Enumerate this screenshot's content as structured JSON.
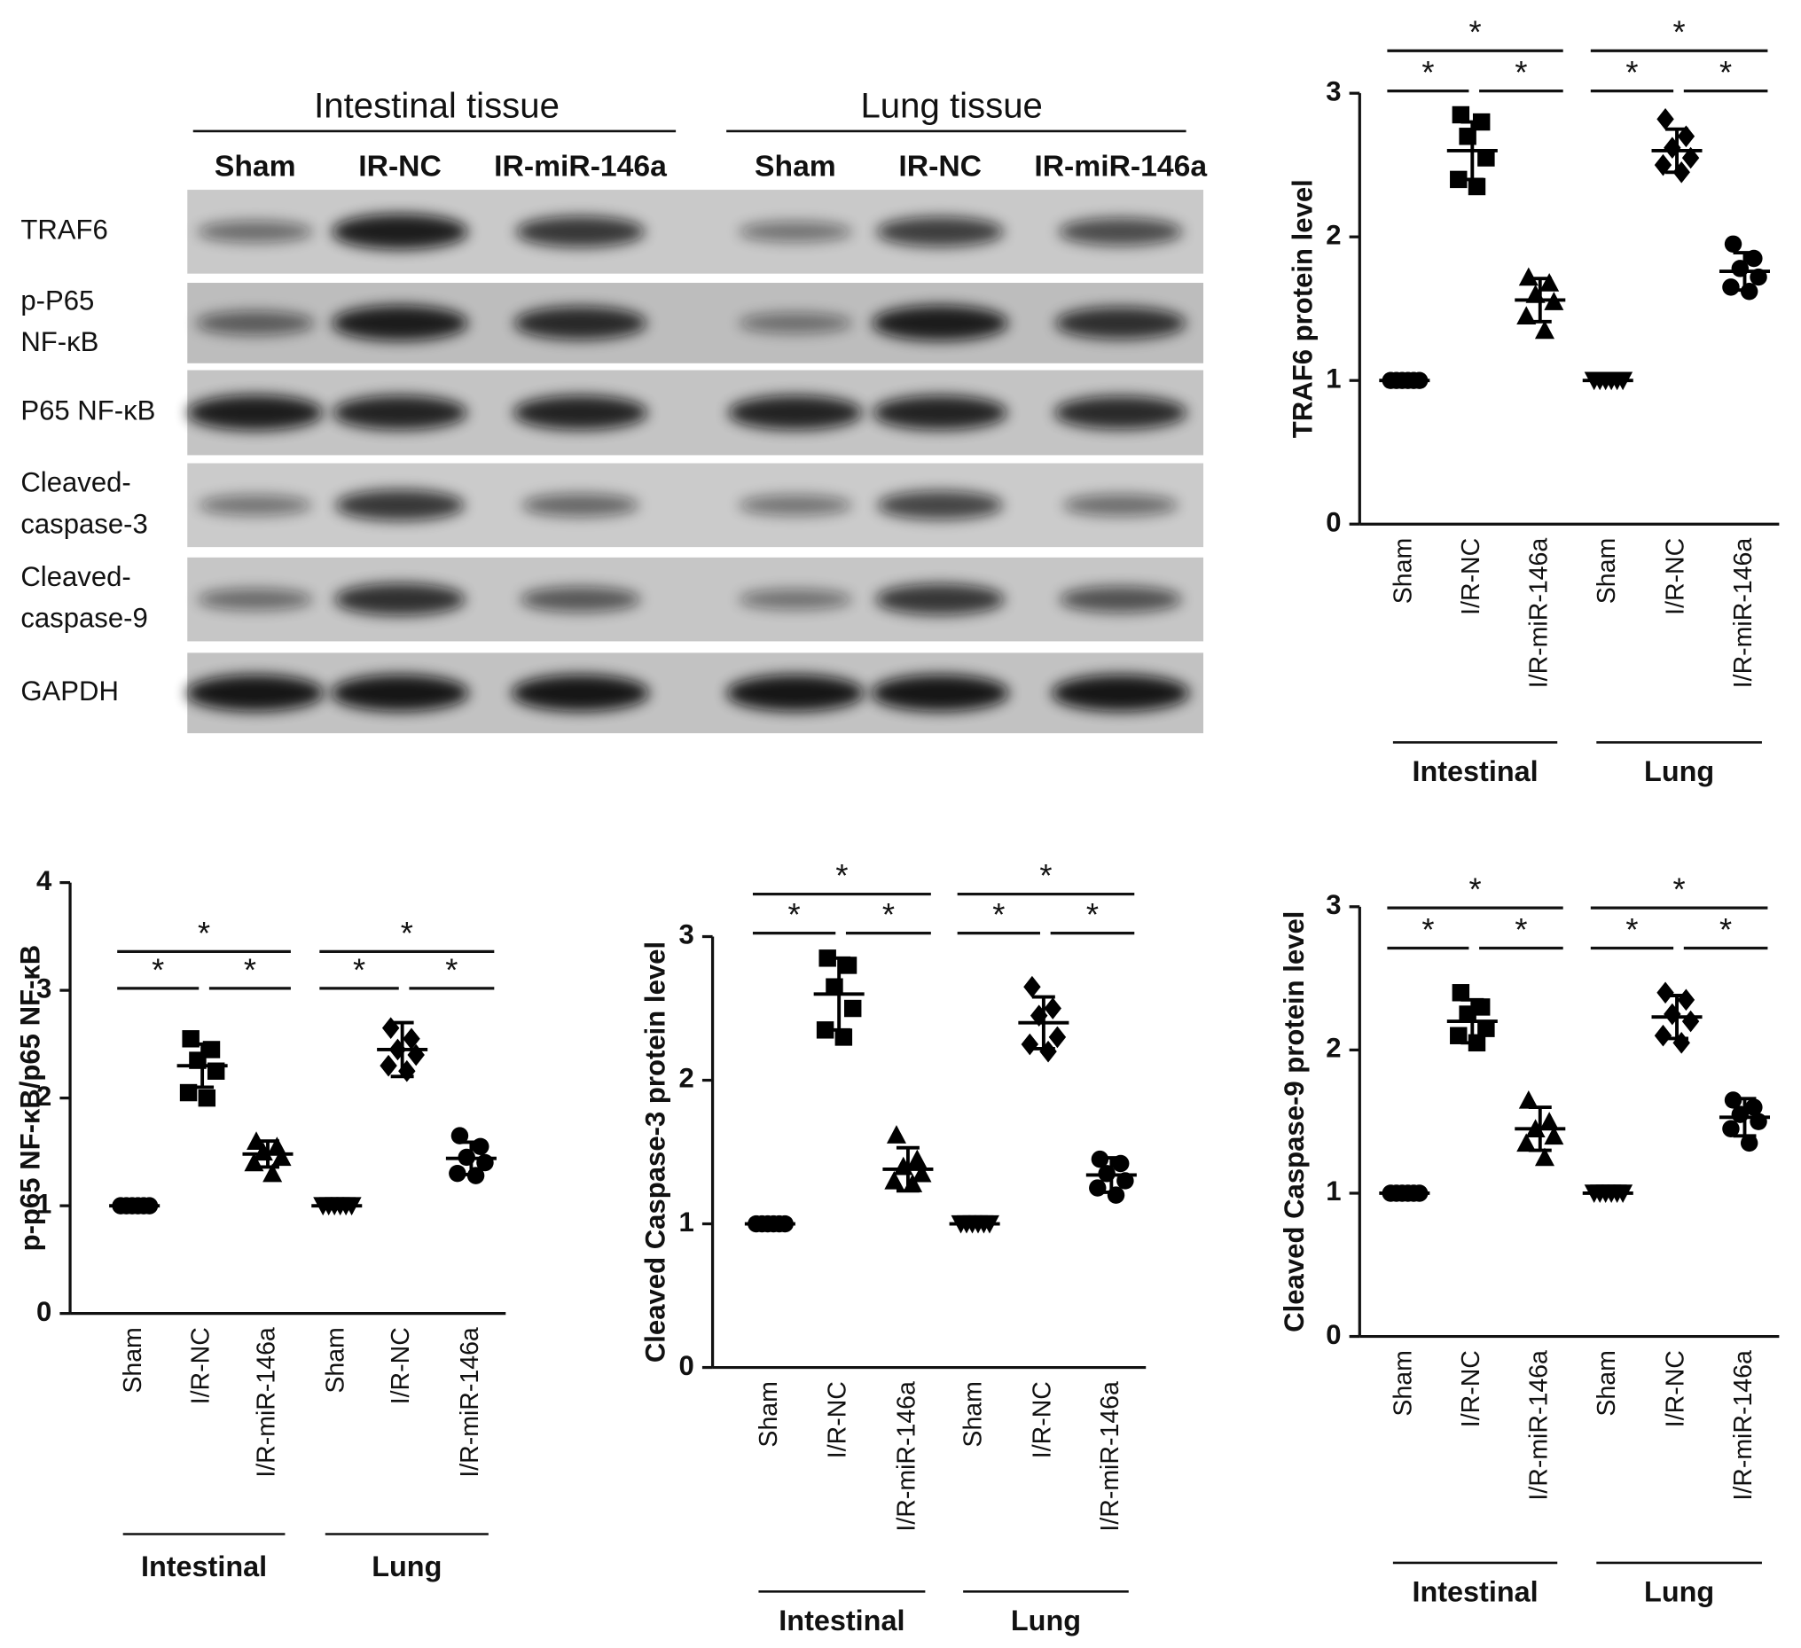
{
  "blot": {
    "tissues": [
      {
        "name": "Intestinal tissue",
        "lanes": [
          "Sham",
          "IR-NC",
          "IR-miR-146a"
        ]
      },
      {
        "name": "Lung tissue",
        "lanes": [
          "Sham",
          "IR-NC",
          "IR-miR-146a"
        ]
      }
    ],
    "rows": [
      [
        "TRAF6"
      ],
      [
        "p-P65",
        "NF-κB"
      ],
      [
        "P65 NF-κB"
      ],
      [
        "Cleaved-",
        "caspase-3"
      ],
      [
        "Cleaved-",
        "caspase-9"
      ],
      [
        "GAPDH"
      ]
    ]
  },
  "chart_data": [
    {
      "type": "scatter",
      "ylabel": "TRAF6 protein level",
      "color": "#000000",
      "ylim": [
        0,
        3
      ],
      "yticks": [
        0,
        1,
        2,
        3
      ],
      "groups": [
        {
          "name": "Intestinal",
          "categories": [
            "Sham",
            "I/R-NC",
            "I/R-miR-146a"
          ],
          "markers": [
            "circle",
            "square",
            "triangle"
          ],
          "points": [
            [
              1,
              1,
              1,
              1,
              1,
              1
            ],
            [
              2.85,
              2.8,
              2.7,
              2.55,
              2.4,
              2.35
            ],
            [
              1.72,
              1.68,
              1.6,
              1.55,
              1.45,
              1.35
            ]
          ],
          "mean": [
            1,
            2.6,
            1.56
          ],
          "sd": [
            0,
            0.2,
            0.15
          ]
        },
        {
          "name": "Lung",
          "categories": [
            "Sham",
            "I/R-NC",
            "I/R-miR-146a"
          ],
          "markers": [
            "triangle-down",
            "diamond",
            "circle"
          ],
          "points": [
            [
              1,
              1,
              1,
              1,
              1,
              1
            ],
            [
              2.82,
              2.7,
              2.62,
              2.55,
              2.5,
              2.45
            ],
            [
              1.95,
              1.85,
              1.78,
              1.72,
              1.65,
              1.62
            ]
          ],
          "mean": [
            1,
            2.6,
            1.76
          ],
          "sd": [
            0,
            0.15,
            0.13
          ]
        }
      ],
      "comparisons": [
        {
          "group": "Intestinal",
          "between": [
            "Sham",
            "I/R-NC"
          ],
          "label": "*"
        },
        {
          "group": "Intestinal",
          "between": [
            "I/R-NC",
            "I/R-miR-146a"
          ],
          "label": "*"
        },
        {
          "group": "Intestinal",
          "between": [
            "Sham",
            "I/R-miR-146a"
          ],
          "label": "*"
        },
        {
          "group": "Lung",
          "between": [
            "Sham",
            "I/R-NC"
          ],
          "label": "*"
        },
        {
          "group": "Lung",
          "between": [
            "I/R-NC",
            "I/R-miR-146a"
          ],
          "label": "*"
        },
        {
          "group": "Lung",
          "between": [
            "Sham",
            "I/R-miR-146a"
          ],
          "label": "*"
        }
      ]
    },
    {
      "type": "scatter",
      "ylabel": "p-p65 NF-κB/p65 NF-κB",
      "color": "#000000",
      "ylim": [
        0,
        4
      ],
      "yticks": [
        0,
        1,
        2,
        3,
        4
      ],
      "groups": [
        {
          "name": "Intestinal",
          "categories": [
            "Sham",
            "I/R-NC",
            "I/R-miR-146a"
          ],
          "markers": [
            "circle",
            "square",
            "triangle"
          ],
          "points": [
            [
              1,
              1,
              1,
              1,
              1,
              1
            ],
            [
              2.55,
              2.45,
              2.35,
              2.25,
              2.05,
              2.0
            ],
            [
              1.6,
              1.55,
              1.5,
              1.45,
              1.4,
              1.3
            ]
          ],
          "mean": [
            1,
            2.3,
            1.48
          ],
          "sd": [
            0,
            0.2,
            0.12
          ]
        },
        {
          "name": "Lung",
          "categories": [
            "Sham",
            "I/R-NC",
            "I/R-miR-146a"
          ],
          "markers": [
            "triangle-down",
            "diamond",
            "circle"
          ],
          "points": [
            [
              1,
              1,
              1,
              1,
              1,
              1
            ],
            [
              2.65,
              2.55,
              2.45,
              2.4,
              2.3,
              2.25
            ],
            [
              1.65,
              1.55,
              1.45,
              1.4,
              1.3,
              1.28
            ]
          ],
          "mean": [
            1,
            2.45,
            1.44
          ],
          "sd": [
            0,
            0.25,
            0.15
          ]
        }
      ],
      "comparisons": [
        {
          "group": "Intestinal",
          "between": [
            "Sham",
            "I/R-NC"
          ],
          "label": "*"
        },
        {
          "group": "Intestinal",
          "between": [
            "I/R-NC",
            "I/R-miR-146a"
          ],
          "label": "*"
        },
        {
          "group": "Intestinal",
          "between": [
            "Sham",
            "I/R-miR-146a"
          ],
          "label": "*"
        },
        {
          "group": "Lung",
          "between": [
            "Sham",
            "I/R-NC"
          ],
          "label": "*"
        },
        {
          "group": "Lung",
          "between": [
            "I/R-NC",
            "I/R-miR-146a"
          ],
          "label": "*"
        },
        {
          "group": "Lung",
          "between": [
            "Sham",
            "I/R-miR-146a"
          ],
          "label": "*"
        }
      ]
    },
    {
      "type": "scatter",
      "ylabel": "Cleaved Caspase-3 protein level",
      "color": "#000000",
      "ylim": [
        0,
        3
      ],
      "yticks": [
        0,
        1,
        2,
        3
      ],
      "groups": [
        {
          "name": "Intestinal",
          "categories": [
            "Sham",
            "I/R-NC",
            "I/R-miR-146a"
          ],
          "markers": [
            "circle",
            "square",
            "triangle"
          ],
          "points": [
            [
              1,
              1,
              1,
              1,
              1,
              1
            ],
            [
              2.85,
              2.8,
              2.65,
              2.5,
              2.35,
              2.3
            ],
            [
              1.62,
              1.45,
              1.4,
              1.35,
              1.3,
              1.28
            ]
          ],
          "mean": [
            1,
            2.6,
            1.38
          ],
          "sd": [
            0,
            0.25,
            0.15
          ]
        },
        {
          "name": "Lung",
          "categories": [
            "Sham",
            "I/R-NC",
            "I/R-miR-146a"
          ],
          "markers": [
            "triangle-down",
            "diamond",
            "circle"
          ],
          "points": [
            [
              1,
              1,
              1,
              1,
              1,
              1
            ],
            [
              2.65,
              2.5,
              2.45,
              2.3,
              2.25,
              2.2
            ],
            [
              1.45,
              1.42,
              1.35,
              1.3,
              1.25,
              1.2
            ]
          ],
          "mean": [
            1,
            2.4,
            1.34
          ],
          "sd": [
            0,
            0.18,
            0.12
          ]
        }
      ],
      "comparisons": [
        {
          "group": "Intestinal",
          "between": [
            "Sham",
            "I/R-NC"
          ],
          "label": "*"
        },
        {
          "group": "Intestinal",
          "between": [
            "I/R-NC",
            "I/R-miR-146a"
          ],
          "label": "*"
        },
        {
          "group": "Intestinal",
          "between": [
            "Sham",
            "I/R-miR-146a"
          ],
          "label": "*"
        },
        {
          "group": "Lung",
          "between": [
            "Sham",
            "I/R-NC"
          ],
          "label": "*"
        },
        {
          "group": "Lung",
          "between": [
            "I/R-NC",
            "I/R-miR-146a"
          ],
          "label": "*"
        },
        {
          "group": "Lung",
          "between": [
            "Sham",
            "I/R-miR-146a"
          ],
          "label": "*"
        }
      ]
    },
    {
      "type": "scatter",
      "ylabel": "Cleaved Caspase-9 protein level",
      "color": "#000000",
      "ylim": [
        0,
        3
      ],
      "yticks": [
        0,
        1,
        2,
        3
      ],
      "groups": [
        {
          "name": "Intestinal",
          "categories": [
            "Sham",
            "I/R-NC",
            "I/R-miR-146a"
          ],
          "markers": [
            "circle",
            "square",
            "triangle"
          ],
          "points": [
            [
              1,
              1,
              1,
              1,
              1,
              1
            ],
            [
              2.4,
              2.3,
              2.25,
              2.15,
              2.1,
              2.05
            ],
            [
              1.65,
              1.5,
              1.45,
              1.4,
              1.35,
              1.25
            ]
          ],
          "mean": [
            1,
            2.2,
            1.45
          ],
          "sd": [
            0,
            0.15,
            0.15
          ]
        },
        {
          "name": "Lung",
          "categories": [
            "Sham",
            "I/R-NC",
            "I/R-miR-146a"
          ],
          "markers": [
            "triangle-down",
            "diamond",
            "circle"
          ],
          "points": [
            [
              1,
              1,
              1,
              1,
              1,
              1
            ],
            [
              2.4,
              2.35,
              2.25,
              2.2,
              2.1,
              2.05
            ],
            [
              1.65,
              1.6,
              1.55,
              1.5,
              1.45,
              1.35
            ]
          ],
          "mean": [
            1,
            2.23,
            1.53
          ],
          "sd": [
            0,
            0.15,
            0.13
          ]
        }
      ],
      "comparisons": [
        {
          "group": "Intestinal",
          "between": [
            "Sham",
            "I/R-NC"
          ],
          "label": "*"
        },
        {
          "group": "Intestinal",
          "between": [
            "I/R-NC",
            "I/R-miR-146a"
          ],
          "label": "*"
        },
        {
          "group": "Intestinal",
          "between": [
            "Sham",
            "I/R-miR-146a"
          ],
          "label": "*"
        },
        {
          "group": "Lung",
          "between": [
            "Sham",
            "I/R-NC"
          ],
          "label": "*"
        },
        {
          "group": "Lung",
          "between": [
            "I/R-NC",
            "I/R-miR-146a"
          ],
          "label": "*"
        },
        {
          "group": "Lung",
          "between": [
            "Sham",
            "I/R-miR-146a"
          ],
          "label": "*"
        }
      ]
    }
  ]
}
